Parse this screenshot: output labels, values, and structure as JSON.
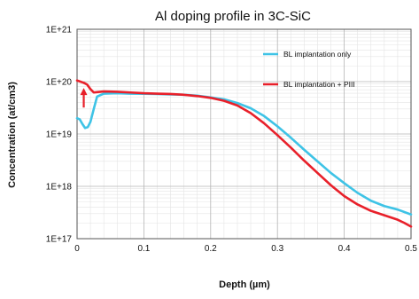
{
  "chart_data": {
    "type": "line",
    "title": "Al doping profile in 3C-SiC",
    "xlabel": "Depth (µm)",
    "ylabel": "Concentration (at/cm3)",
    "xlim": [
      0,
      0.5
    ],
    "ylim": [
      1e+17,
      1e+21
    ],
    "yscale": "log",
    "grid": true,
    "legend_position": "top-right",
    "x_ticks": [
      0,
      0.1,
      0.2,
      0.3,
      0.4,
      0.5
    ],
    "x_tick_labels": [
      "0",
      "0.1",
      "0.2",
      "0.3",
      "0.4",
      "0.5"
    ],
    "y_ticks": [
      1e+17,
      1e+18,
      1e+19,
      1e+20,
      1e+21
    ],
    "y_tick_labels": [
      "1E+17",
      "1E+18",
      "1E+19",
      "1E+20",
      "1E+21"
    ],
    "series": [
      {
        "name": "BL implantation only",
        "color": "#3ec3e6",
        "points": [
          [
            0.0,
            2e+19
          ],
          [
            0.004,
            1.9e+19
          ],
          [
            0.008,
            1.55e+19
          ],
          [
            0.012,
            1.3e+19
          ],
          [
            0.016,
            1.35e+19
          ],
          [
            0.02,
            1.7e+19
          ],
          [
            0.025,
            3e+19
          ],
          [
            0.03,
            5.2e+19
          ],
          [
            0.04,
            5.9e+19
          ],
          [
            0.06,
            6e+19
          ],
          [
            0.08,
            5.9e+19
          ],
          [
            0.1,
            5.85e+19
          ],
          [
            0.12,
            5.8e+19
          ],
          [
            0.14,
            5.7e+19
          ],
          [
            0.16,
            5.6e+19
          ],
          [
            0.18,
            5.4e+19
          ],
          [
            0.2,
            5e+19
          ],
          [
            0.22,
            4.6e+19
          ],
          [
            0.24,
            3.9e+19
          ],
          [
            0.26,
            3.1e+19
          ],
          [
            0.28,
            2.2e+19
          ],
          [
            0.3,
            1.4e+19
          ],
          [
            0.32,
            8.5e+18
          ],
          [
            0.34,
            5e+18
          ],
          [
            0.36,
            3e+18
          ],
          [
            0.38,
            1.8e+18
          ],
          [
            0.4,
            1.15e+18
          ],
          [
            0.42,
            7.5e+17
          ],
          [
            0.44,
            5.3e+17
          ],
          [
            0.46,
            4.2e+17
          ],
          [
            0.48,
            3.6e+17
          ],
          [
            0.5,
            2.9e+17
          ]
        ]
      },
      {
        "name": "BL implantation + PIII",
        "color": "#e8202a",
        "points": [
          [
            0.0,
            1.05e+20
          ],
          [
            0.005,
            1e+20
          ],
          [
            0.01,
            9.5e+19
          ],
          [
            0.015,
            8.8e+19
          ],
          [
            0.02,
            7.2e+19
          ],
          [
            0.025,
            6.2e+19
          ],
          [
            0.03,
            6.3e+19
          ],
          [
            0.04,
            6.5e+19
          ],
          [
            0.06,
            6.4e+19
          ],
          [
            0.08,
            6.2e+19
          ],
          [
            0.1,
            6e+19
          ],
          [
            0.12,
            5.9e+19
          ],
          [
            0.14,
            5.8e+19
          ],
          [
            0.16,
            5.6e+19
          ],
          [
            0.18,
            5.3e+19
          ],
          [
            0.2,
            4.9e+19
          ],
          [
            0.22,
            4.3e+19
          ],
          [
            0.24,
            3.5e+19
          ],
          [
            0.26,
            2.5e+19
          ],
          [
            0.28,
            1.6e+19
          ],
          [
            0.3,
            9.5e+18
          ],
          [
            0.32,
            5.5e+18
          ],
          [
            0.34,
            3.1e+18
          ],
          [
            0.36,
            1.8e+18
          ],
          [
            0.38,
            1.05e+18
          ],
          [
            0.4,
            6.5e+17
          ],
          [
            0.42,
            4.5e+17
          ],
          [
            0.44,
            3.4e+17
          ],
          [
            0.46,
            2.8e+17
          ],
          [
            0.48,
            2.3e+17
          ],
          [
            0.49,
            2e+17
          ],
          [
            0.5,
            1.7e+17
          ]
        ]
      }
    ],
    "annotations": [
      {
        "type": "arrow",
        "color": "#e8202a",
        "x": 0.01,
        "from_y": 3.2e+19,
        "to_y": 7e+19
      }
    ]
  }
}
